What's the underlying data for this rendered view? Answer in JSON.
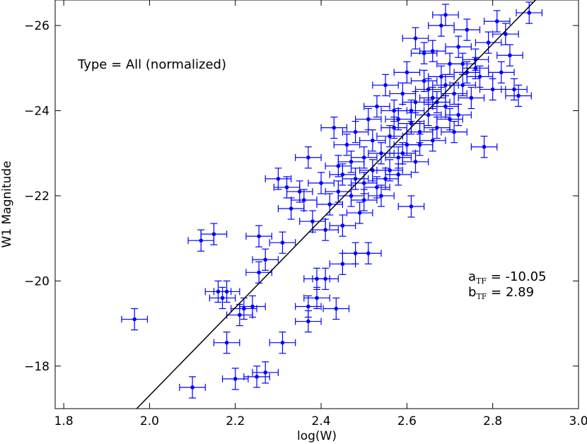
{
  "chart_data": {
    "type": "scatter",
    "title": "",
    "xlabel": "log(W)",
    "ylabel": "W1 Magnitude",
    "xlim": [
      1.78,
      3.0
    ],
    "ylim": [
      -17.0,
      -26.6
    ],
    "y_inverted": true,
    "grid": false,
    "legend": "none",
    "x_ticks": [
      1.8,
      2.0,
      2.2,
      2.4,
      2.6,
      2.8,
      3.0
    ],
    "x_tick_labels": [
      "1.8",
      "2.0",
      "2.2",
      "2.4",
      "2.6",
      "2.8",
      "3.0"
    ],
    "y_ticks": [
      -18,
      -20,
      -22,
      -24,
      -26
    ],
    "y_tick_labels": [
      "−18",
      "−20",
      "−22",
      "−24",
      "−26"
    ],
    "annotation": "Type = All (normalized)",
    "fit_line": {
      "slope": -10.05,
      "intercept_at_logW_2_5": -22.53,
      "points": [
        [
          1.97,
          -17.0
        ],
        [
          2.9,
          -26.6
        ]
      ],
      "color": "#000000"
    },
    "fit_text": {
      "a_label": "a",
      "a_sub": "TF",
      "a_value": " = -10.05",
      "b_label": "b",
      "b_sub": "TF",
      "b_value": " =   2.89"
    },
    "series": [
      {
        "color": "#0000ff",
        "x_error": 0.03,
        "y_error": 0.25,
        "points": [
          [
            1.965,
            -19.1
          ],
          [
            2.1,
            -17.5
          ],
          [
            2.12,
            -20.95
          ],
          [
            2.15,
            -21.1
          ],
          [
            2.16,
            -19.75
          ],
          [
            2.17,
            -19.6
          ],
          [
            2.18,
            -19.75
          ],
          [
            2.18,
            -18.55
          ],
          [
            2.2,
            -17.7
          ],
          [
            2.21,
            -19.2
          ],
          [
            2.22,
            -19.35
          ],
          [
            2.24,
            -19.4
          ],
          [
            2.25,
            -17.75
          ],
          [
            2.255,
            -20.2
          ],
          [
            2.255,
            -21.05
          ],
          [
            2.27,
            -17.85
          ],
          [
            2.27,
            -20.5
          ],
          [
            2.31,
            -18.55
          ],
          [
            2.31,
            -20.9
          ],
          [
            2.37,
            -19.05
          ],
          [
            2.37,
            -19.4
          ],
          [
            2.39,
            -19.6
          ],
          [
            2.39,
            -20.05
          ],
          [
            2.41,
            -20.05
          ],
          [
            2.435,
            -19.35
          ],
          [
            2.45,
            -20.4
          ],
          [
            2.48,
            -20.65
          ],
          [
            2.51,
            -20.65
          ],
          [
            2.3,
            -22.4
          ],
          [
            2.32,
            -22.2
          ],
          [
            2.33,
            -21.7
          ],
          [
            2.35,
            -22.1
          ],
          [
            2.37,
            -22.9
          ],
          [
            2.38,
            -21.4
          ],
          [
            2.4,
            -22.3
          ],
          [
            2.42,
            -21.8
          ],
          [
            2.43,
            -23.6
          ],
          [
            2.44,
            -22.7
          ],
          [
            2.45,
            -21.3
          ],
          [
            2.46,
            -23.2
          ],
          [
            2.47,
            -22.0
          ],
          [
            2.48,
            -23.5
          ],
          [
            2.49,
            -21.6
          ],
          [
            2.5,
            -22.9
          ],
          [
            2.5,
            -22.3
          ],
          [
            2.51,
            -23.8
          ],
          [
            2.52,
            -22.6
          ],
          [
            2.53,
            -24.1
          ],
          [
            2.54,
            -23.0
          ],
          [
            2.55,
            -24.6
          ],
          [
            2.55,
            -22.4
          ],
          [
            2.56,
            -23.4
          ],
          [
            2.57,
            -24.0
          ],
          [
            2.58,
            -22.9
          ],
          [
            2.58,
            -23.8
          ],
          [
            2.59,
            -24.4
          ],
          [
            2.6,
            -23.2
          ],
          [
            2.6,
            -24.9
          ],
          [
            2.61,
            -21.75
          ],
          [
            2.61,
            -23.7
          ],
          [
            2.62,
            -24.2
          ],
          [
            2.62,
            -25.7
          ],
          [
            2.63,
            -23.5
          ],
          [
            2.64,
            -24.7
          ],
          [
            2.64,
            -25.35
          ],
          [
            2.65,
            -23.9
          ],
          [
            2.66,
            -25.4
          ],
          [
            2.66,
            -24.3
          ],
          [
            2.67,
            -23.6
          ],
          [
            2.68,
            -24.8
          ],
          [
            2.68,
            -26.0
          ],
          [
            2.69,
            -24.1
          ],
          [
            2.69,
            -26.25
          ],
          [
            2.7,
            -25.1
          ],
          [
            2.71,
            -24.4
          ],
          [
            2.72,
            -23.9
          ],
          [
            2.72,
            -25.5
          ],
          [
            2.73,
            -24.6
          ],
          [
            2.74,
            -25.9
          ],
          [
            2.75,
            -24.3
          ],
          [
            2.76,
            -25.2
          ],
          [
            2.77,
            -24.8
          ],
          [
            2.78,
            -23.15
          ],
          [
            2.79,
            -25.6
          ],
          [
            2.8,
            -24.5
          ],
          [
            2.81,
            -26.1
          ],
          [
            2.82,
            -24.9
          ],
          [
            2.83,
            -25.8
          ],
          [
            2.84,
            -25.3
          ],
          [
            2.85,
            -24.5
          ],
          [
            2.86,
            -24.35
          ],
          [
            2.885,
            -26.3
          ],
          [
            2.45,
            -22.5
          ],
          [
            2.47,
            -22.8
          ],
          [
            2.53,
            -22.2
          ],
          [
            2.56,
            -22.6
          ],
          [
            2.59,
            -23.0
          ],
          [
            2.63,
            -23.2
          ],
          [
            2.67,
            -24.2
          ],
          [
            2.7,
            -23.8
          ],
          [
            2.74,
            -24.9
          ],
          [
            2.76,
            -25.0
          ],
          [
            2.52,
            -23.3
          ],
          [
            2.57,
            -23.6
          ],
          [
            2.61,
            -24.0
          ],
          [
            2.65,
            -24.5
          ],
          [
            2.69,
            -24.6
          ],
          [
            2.73,
            -25.1
          ],
          [
            2.5,
            -21.9
          ],
          [
            2.54,
            -22.0
          ],
          [
            2.58,
            -22.5
          ],
          [
            2.62,
            -22.8
          ],
          [
            2.66,
            -23.3
          ],
          [
            2.71,
            -23.5
          ],
          [
            2.44,
            -22.1
          ],
          [
            2.48,
            -22.4
          ],
          [
            2.36,
            -21.9
          ],
          [
            2.41,
            -21.2
          ]
        ]
      }
    ]
  }
}
